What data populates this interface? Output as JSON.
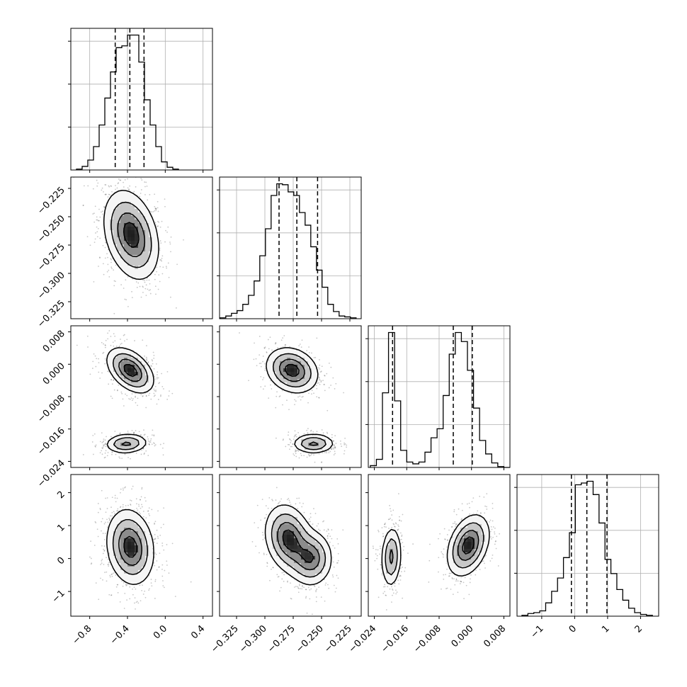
{
  "chart_data": {
    "type": "corner",
    "parameters": [
      {
        "range": [
          -1.0,
          0.5
        ],
        "ticks": [
          -0.8,
          -0.4,
          0.0,
          0.4
        ],
        "tick_labels": [
          "−0.8",
          "−0.4",
          "0.0",
          "0.4"
        ],
        "quantiles": [
          -0.53,
          -0.375,
          -0.225
        ],
        "hist_edges": [
          -0.94,
          -0.88,
          -0.82,
          -0.76,
          -0.7,
          -0.64,
          -0.58,
          -0.52,
          -0.46,
          -0.4,
          -0.34,
          -0.28,
          -0.22,
          -0.16,
          -0.1,
          -0.04,
          0.02,
          0.08,
          0.14
        ],
        "hist_counts": [
          1,
          4,
          11,
          26,
          50,
          80,
          109,
          136,
          138,
          150,
          150,
          120,
          78,
          50,
          26,
          9,
          3,
          1
        ]
      },
      {
        "range": [
          -0.34,
          -0.215
        ],
        "ticks": [
          -0.325,
          -0.3,
          -0.275,
          -0.25,
          -0.225
        ],
        "tick_labels": [
          "−0.325",
          "−0.300",
          "−0.275",
          "−0.250",
          "−0.225"
        ],
        "quantiles": [
          -0.2875,
          -0.2718,
          -0.2535
        ],
        "hist_edges": [
          -0.3395,
          -0.3345,
          -0.3295,
          -0.3245,
          -0.3195,
          -0.3145,
          -0.3095,
          -0.3045,
          -0.2995,
          -0.2945,
          -0.2895,
          -0.2845,
          -0.2795,
          -0.2745,
          -0.2695,
          -0.2645,
          -0.2595,
          -0.2545,
          -0.2495,
          -0.2445,
          -0.2395,
          -0.2345,
          -0.2295,
          -0.2245,
          -0.2195
        ],
        "hist_counts": [
          1,
          3,
          6,
          9,
          16,
          26,
          42,
          70,
          100,
          137,
          150,
          149,
          141,
          137,
          118,
          104,
          80,
          54,
          35,
          16,
          8,
          3,
          2,
          1
        ]
      },
      {
        "range": [
          -0.0255,
          0.0095
        ],
        "ticks": [
          -0.024,
          -0.016,
          -0.008,
          0.0,
          0.008
        ],
        "tick_labels": [
          "−0.024",
          "−0.016",
          "−0.008",
          "0.000",
          "0.008"
        ],
        "quantiles": [
          -0.0195,
          -0.0045,
          0.0002
        ],
        "hist_edges": [
          -0.025,
          -0.0235,
          -0.022,
          -0.0205,
          -0.019,
          -0.0175,
          -0.016,
          -0.0145,
          -0.013,
          -0.0115,
          -0.01,
          -0.0085,
          -0.007,
          -0.0055,
          -0.004,
          -0.0025,
          -0.001,
          0.0005,
          0.002,
          0.0035,
          0.005,
          0.0065,
          0.008,
          0.0095
        ],
        "hist_counts": [
          2,
          9,
          83,
          150,
          74,
          19,
          6,
          4,
          6,
          17,
          33,
          43,
          80,
          126,
          150,
          140,
          108,
          66,
          30,
          15,
          5,
          1,
          0
        ]
      },
      {
        "range": [
          -1.75,
          2.55
        ],
        "ticks": [
          -1,
          0,
          1,
          2
        ],
        "tick_labels": [
          "−1",
          "0",
          "1",
          "2"
        ],
        "quantiles": [
          -0.1,
          0.37,
          0.98
        ],
        "hist_edges": [
          -1.6,
          -1.42,
          -1.24,
          -1.06,
          -0.88,
          -0.7,
          -0.52,
          -0.34,
          -0.16,
          0.02,
          0.2,
          0.38,
          0.56,
          0.74,
          0.92,
          1.1,
          1.28,
          1.46,
          1.64,
          1.82,
          2.0,
          2.18,
          2.36
        ],
        "hist_counts": [
          1,
          3,
          4,
          6,
          15,
          28,
          43,
          66,
          94,
          148,
          150,
          152,
          137,
          105,
          64,
          48,
          30,
          18,
          9,
          4,
          2,
          1
        ]
      }
    ],
    "pairs": [
      {
        "x": 0,
        "y": 1,
        "modes": [
          {
            "mean": [
              -0.36,
              -0.266
            ],
            "sd": [
              0.14,
              0.019
            ],
            "corr": -0.3,
            "weight": 1.0
          }
        ]
      },
      {
        "x": 0,
        "y": 2,
        "modes": [
          {
            "mean": [
              -0.37,
              -0.0015
            ],
            "sd": [
              0.12,
              0.0027
            ],
            "corr": -0.45,
            "weight": 0.6
          },
          {
            "mean": [
              -0.41,
              -0.0196
            ],
            "sd": [
              0.11,
              0.0012
            ],
            "corr": 0.1,
            "weight": 0.4
          }
        ]
      },
      {
        "x": 1,
        "y": 2,
        "modes": [
          {
            "mean": [
              -0.276,
              -0.0015
            ],
            "sd": [
              0.011,
              0.0027
            ],
            "corr": -0.2,
            "weight": 0.6
          },
          {
            "mean": [
              -0.257,
              -0.0196
            ],
            "sd": [
              0.009,
              0.0012
            ],
            "corr": 0.0,
            "weight": 0.4
          }
        ]
      },
      {
        "x": 0,
        "y": 3,
        "modes": [
          {
            "mean": [
              -0.37,
              0.35
            ],
            "sd": [
              0.12,
              0.55
            ],
            "corr": -0.15,
            "weight": 1.0
          }
        ]
      },
      {
        "x": 1,
        "y": 3,
        "modes": [
          {
            "mean": [
              -0.279,
              0.6
            ],
            "sd": [
              0.01,
              0.5
            ],
            "corr": -0.2,
            "weight": 0.55
          },
          {
            "mean": [
              -0.259,
              0.0
            ],
            "sd": [
              0.009,
              0.4
            ],
            "corr": 0.0,
            "weight": 0.45
          }
        ]
      },
      {
        "x": 2,
        "y": 3,
        "modes": [
          {
            "mean": [
              -0.0198,
              0.05
            ],
            "sd": [
              0.0012,
              0.45
            ],
            "corr": 0.1,
            "weight": 0.4
          },
          {
            "mean": [
              -0.0008,
              0.4
            ],
            "sd": [
              0.0025,
              0.45
            ],
            "corr": 0.35,
            "weight": 0.6
          }
        ]
      }
    ]
  }
}
